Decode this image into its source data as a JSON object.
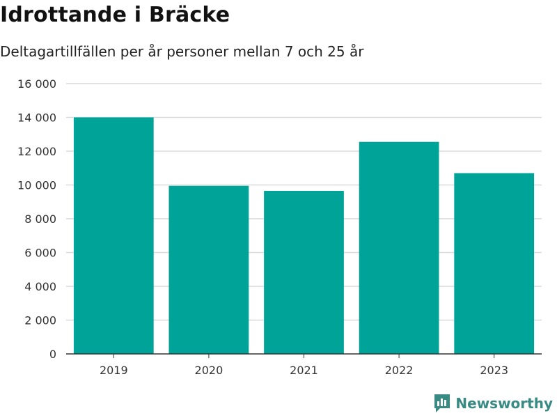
{
  "header": {
    "title": "Idrottande i Bräcke",
    "subtitle": "Deltagartillfällen per år personer mellan 7 och 25 år"
  },
  "branding": {
    "name": "Newsworthy",
    "color": "#3a8a84"
  },
  "chart_data": {
    "type": "bar",
    "title": "Idrottande i Bräcke",
    "subtitle": "Deltagartillfällen per år personer mellan 7 och 25 år",
    "categories": [
      "2019",
      "2020",
      "2021",
      "2022",
      "2023"
    ],
    "values": [
      14000,
      9950,
      9650,
      12550,
      10700
    ],
    "xlabel": "",
    "ylabel": "",
    "ylim": [
      0,
      16000
    ],
    "yticks": [
      0,
      2000,
      4000,
      6000,
      8000,
      10000,
      12000,
      14000,
      16000
    ],
    "ytick_labels": [
      "0",
      "2 000",
      "4 000",
      "6 000",
      "8 000",
      "10 000",
      "12 000",
      "14 000",
      "16 000"
    ],
    "grid": true,
    "bar_color": "#00a398",
    "grid_color": "#d9d9d9",
    "axis_color": "#333333"
  }
}
